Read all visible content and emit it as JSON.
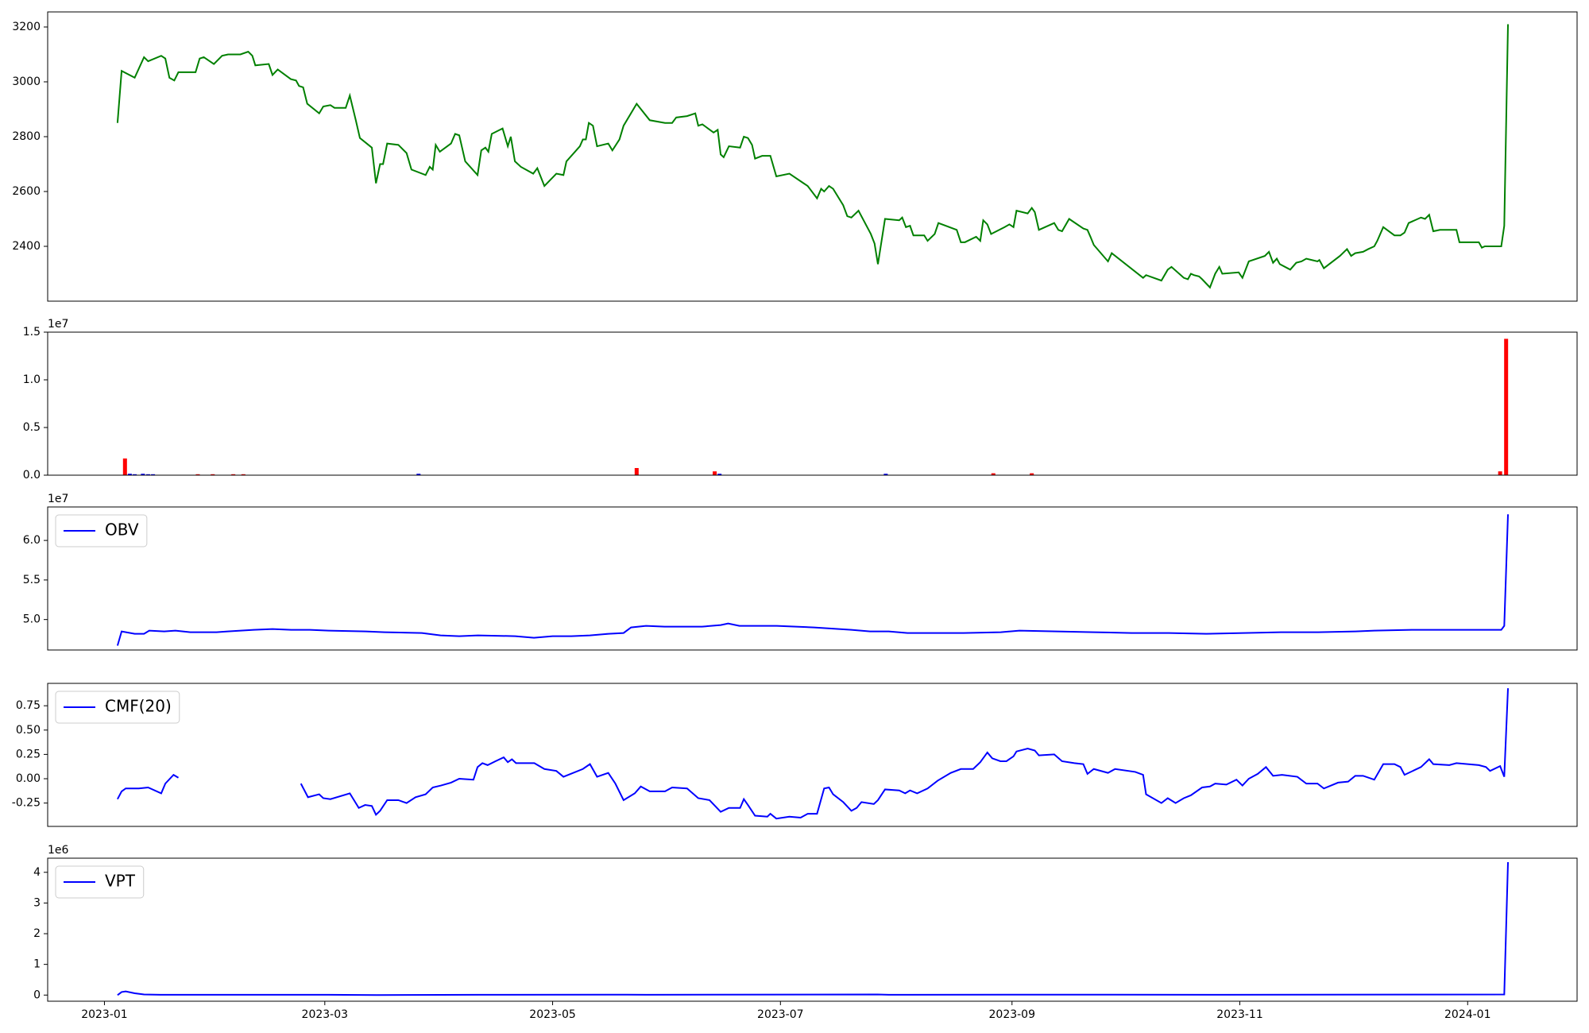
{
  "chart_data": [
    {
      "type": "line",
      "color": "#008000",
      "x": [
        3.5,
        4.6,
        8.1,
        10.6,
        11.7,
        15.2,
        16.3,
        17.4,
        18.7,
        19.8,
        24.4,
        25.5,
        26.6,
        29.3,
        31.5,
        33.1,
        36.4,
        38.5,
        39.6,
        40.4,
        44,
        45,
        46.4,
        49.9,
        51.3,
        52.1,
        53.2,
        54.3,
        57.5,
        58.6,
        60.5,
        61.6,
        64.6,
        65.7,
        67.3,
        68.4,
        71.6,
        72.7,
        73.8,
        74.6,
        75.7,
        78.7,
        80.9,
        82.2,
        86,
        87.1,
        87.9,
        88.7,
        89.8,
        92.8,
        93.9,
        95,
        96.6,
        99.9,
        100.9,
        102,
        102.8,
        103.7,
        106.6,
        108,
        108.8,
        109.9,
        111.5,
        114.8,
        115.9,
        117.8,
        121,
        122.9,
        123.7,
        127.3,
        128.1,
        128.9,
        129.7,
        130.8,
        131.9,
        134.9,
        136,
        137.9,
        139,
        142.5,
        146,
        150.1,
        152,
        153.1,
        156,
        158.2,
        159,
        160.1,
        163.1,
        164.2,
        165,
        165.8,
        167.2,
        170.2,
        171.2,
        172.3,
        173.4,
        174.2,
        176.1,
        178.3,
        179.9,
        183.4,
        187.2,
        188.3,
        190.8,
        191.9,
        192.7,
        194,
        195.1,
        197.8,
        198.9,
        200,
        201.9,
        205.2,
        206.2,
        207.1,
        209,
        212.8,
        213.6,
        214.6,
        215.7,
        216.6,
        218.7,
        219.5,
        220.4,
        222.3,
        223.3,
        228.2,
        229.3,
        230.4,
        233.4,
        234.5,
        235.3,
        236.4,
        237.4,
        241,
        242.3,
        243.4,
        244.2,
        247.2,
        248.3,
        249.1,
        250.2,
        254.3,
        255.4,
        256.4,
        258.3,
        262.1,
        263.2,
        264,
        264.9,
        268.7,
        269.7,
        278.1,
        278.9,
        283,
        284.7,
        285.7,
        289,
        290.1,
        290.9,
        291.7,
        293.1,
        293.9,
        296,
        297.4,
        298.5,
        299.3,
        303.7,
        304.7,
        306.4,
        310.7,
        311.8,
        312.9,
        313.9,
        314.7,
        317.5,
        319.1,
        320.5,
        321.8,
        324.8,
        325.3,
        326.5,
        330.8,
        332.7,
        333.8,
        334.9,
        337,
        338.4,
        340,
        340.8,
        342.4,
        345.4,
        347,
        348.1,
        349.2,
        352.5,
        353.6,
        354.7,
        355.8,
        357.6,
        362,
        362.8,
        368,
        368.8,
        369.6,
        374,
        374.8,
        375.8
      ],
      "values": [
        2850,
        3040,
        3015,
        3090,
        3075,
        3095,
        3085,
        3015,
        3005,
        3035,
        3035,
        3085,
        3090,
        3065,
        3095,
        3100,
        3100,
        3110,
        3095,
        3060,
        3065,
        3025,
        3045,
        3010,
        3005,
        2985,
        2980,
        2920,
        2885,
        2910,
        2915,
        2905,
        2905,
        2950,
        2860,
        2795,
        2760,
        2630,
        2700,
        2700,
        2775,
        2770,
        2740,
        2680,
        2660,
        2690,
        2680,
        2770,
        2745,
        2775,
        2810,
        2805,
        2710,
        2660,
        2750,
        2760,
        2745,
        2810,
        2830,
        2765,
        2800,
        2710,
        2690,
        2665,
        2685,
        2620,
        2665,
        2660,
        2710,
        2765,
        2790,
        2790,
        2850,
        2840,
        2765,
        2775,
        2750,
        2790,
        2840,
        2920,
        2860,
        2850,
        2850,
        2870,
        2875,
        2885,
        2840,
        2845,
        2815,
        2825,
        2735,
        2725,
        2765,
        2760,
        2800,
        2795,
        2770,
        2720,
        2730,
        2730,
        2655,
        2665,
        2630,
        2620,
        2575,
        2610,
        2600,
        2620,
        2610,
        2550,
        2510,
        2505,
        2530,
        2445,
        2410,
        2335,
        2500,
        2495,
        2505,
        2470,
        2475,
        2440,
        2440,
        2440,
        2420,
        2445,
        2485,
        2460,
        2415,
        2415,
        2435,
        2420,
        2495,
        2480,
        2445,
        2470,
        2480,
        2470,
        2530,
        2520,
        2540,
        2525,
        2460,
        2485,
        2460,
        2455,
        2500,
        2465,
        2460,
        2435,
        2405,
        2345,
        2375,
        2285,
        2295,
        2275,
        2315,
        2325,
        2285,
        2280,
        2300,
        2295,
        2290,
        2280,
        2250,
        2300,
        2325,
        2300,
        2305,
        2285,
        2345,
        2365,
        2380,
        2340,
        2355,
        2335,
        2315,
        2340,
        2345,
        2355,
        2345,
        2350,
        2320,
        2365,
        2390,
        2365,
        2375,
        2380,
        2390,
        2400,
        2420,
        2470,
        2440,
        2440,
        2450,
        2485,
        2505,
        2500,
        2515,
        2455,
        2460,
        2460,
        2415,
        2415,
        2395,
        2400,
        2400,
        2475,
        3210
      ],
      "xlim": [
        -15.2,
        394.3
      ],
      "ylim": [
        2200,
        3255
      ],
      "yticks": [
        2400,
        2600,
        2800,
        3000,
        3200
      ]
    },
    {
      "type": "bar",
      "offset_label": "1e7",
      "series": [
        {
          "color": "#ff0000",
          "x": [
            5.5,
            25,
            29,
            34.5,
            37.2,
            142.5,
            163.4,
            238,
            248.3,
            373.7,
            375.3
          ],
          "values": [
            1750000,
            100000,
            100000,
            100000,
            100000,
            750000,
            400000,
            200000,
            200000,
            400000,
            14300000
          ]
        },
        {
          "color": "#0000ff",
          "x": [
            6.8,
            8.1,
            10.3,
            11.7,
            13,
            84.1,
            164.7,
            209.2
          ],
          "values": [
            150000,
            100000,
            150000,
            100000,
            100000,
            150000,
            150000,
            150000
          ]
        }
      ],
      "xlim": [
        -15.2,
        394.3
      ],
      "ylim": [
        0,
        15000000
      ],
      "yticks": [
        {
          "value": 0,
          "label": "0.0"
        },
        {
          "value": 5000000,
          "label": "0.5"
        },
        {
          "value": 10000000,
          "label": "1.0"
        },
        {
          "value": 15000000,
          "label": "1.5"
        }
      ]
    },
    {
      "type": "line",
      "offset_label": "1e7",
      "legend": "upper left",
      "x": [
        3.5,
        4.6,
        8.1,
        10.6,
        12,
        16,
        19,
        23,
        30,
        33,
        40,
        45,
        50,
        55,
        60,
        70,
        75,
        85,
        90,
        95,
        100,
        110,
        115,
        120,
        125,
        130,
        135,
        139,
        141,
        145,
        150,
        160,
        165,
        167,
        170,
        180,
        190,
        200,
        205,
        210,
        215,
        220,
        230,
        240,
        245,
        255,
        265,
        275,
        285,
        295,
        305,
        315,
        325,
        335,
        340,
        350,
        360,
        370,
        374,
        374.8,
        375.8
      ],
      "series": [
        {
          "name": "OBV",
          "color": "#0000ff",
          "values": [
            46700000,
            48500000,
            48200000,
            48200000,
            48600000,
            48500000,
            48600000,
            48400000,
            48400000,
            48500000,
            48700000,
            48800000,
            48700000,
            48700000,
            48600000,
            48500000,
            48400000,
            48300000,
            48000000,
            47900000,
            48000000,
            47900000,
            47700000,
            47900000,
            47900000,
            48000000,
            48200000,
            48300000,
            49000000,
            49200000,
            49100000,
            49100000,
            49300000,
            49500000,
            49200000,
            49200000,
            49000000,
            48700000,
            48500000,
            48500000,
            48300000,
            48300000,
            48300000,
            48400000,
            48600000,
            48500000,
            48400000,
            48300000,
            48300000,
            48200000,
            48300000,
            48400000,
            48400000,
            48500000,
            48600000,
            48700000,
            48700000,
            48700000,
            48700000,
            49200000,
            63300000
          ]
        }
      ],
      "xlim": [
        -15.2,
        394.3
      ],
      "ylim": [
        46150000,
        64230000
      ],
      "yticks": [
        {
          "value": 50000000,
          "label": "5.0"
        },
        {
          "value": 55000000,
          "label": "5.5"
        },
        {
          "value": 60000000,
          "label": "6.0"
        }
      ]
    },
    {
      "type": "line",
      "legend": "upper left",
      "x": [
        3.5,
        4.6,
        5.7,
        9.2,
        11.7,
        15.2,
        16.3,
        18.5,
        19.8,
        36,
        52.6,
        54.5,
        57.5,
        58.6,
        60.5,
        65.7,
        68.1,
        69.8,
        71.6,
        72.7,
        73.8,
        75.7,
        78.7,
        80.9,
        83.3,
        86,
        87.9,
        90.1,
        92.8,
        95,
        98.8,
        99.9,
        101.2,
        102.6,
        104.7,
        106.9,
        108,
        109.1,
        110.2,
        115.1,
        117.8,
        121,
        122.9,
        128.1,
        130,
        131.9,
        134.9,
        136.8,
        139,
        142,
        143.6,
        146,
        150.1,
        152,
        156,
        159,
        162,
        165,
        167.2,
        170.2,
        171.2,
        172.3,
        174.2,
        177.5,
        178.3,
        179.9,
        183.4,
        186.4,
        188.3,
        190.8,
        192.7,
        194,
        195.1,
        197.8,
        200,
        201.4,
        202.7,
        206,
        207.1,
        209,
        212.8,
        214.4,
        215.7,
        217.6,
        220.4,
        223.1,
        226.6,
        229.3,
        232.6,
        234.5,
        236.4,
        237.7,
        239.9,
        241.5,
        243.4,
        244.2,
        247.2,
        249.1,
        250.2,
        254.3,
        256.4,
        259.7,
        262.1,
        263.2,
        264.9,
        268.7,
        270.6,
        276,
        278.1,
        278.9,
        283,
        284.7,
        286.8,
        289,
        290.9,
        293.9,
        296,
        297.4,
        300.4,
        303.1,
        304.7,
        306.4,
        308.8,
        311,
        312.9,
        315.3,
        319.4,
        321.8,
        324.8,
        326.5,
        330.3,
        333,
        334.9,
        337,
        340,
        342.4,
        345.4,
        347,
        348.1,
        352.5,
        354.7,
        355.8,
        360.1,
        362,
        368,
        369.9,
        371,
        373.7,
        374.8,
        375.8
      ],
      "series": [
        {
          "name": "CMF(20)",
          "color": "#0000ff",
          "values": [
            -0.21,
            -0.13,
            -0.1,
            -0.1,
            -0.09,
            -0.15,
            -0.05,
            0.04,
            0.01,
            null,
            -0.05,
            -0.19,
            -0.16,
            -0.2,
            -0.21,
            -0.15,
            -0.3,
            -0.27,
            -0.28,
            -0.37,
            -0.33,
            -0.22,
            -0.22,
            -0.25,
            -0.19,
            -0.16,
            -0.09,
            -0.07,
            -0.04,
            0,
            -0.01,
            0.12,
            0.16,
            0.14,
            0.18,
            0.22,
            0.17,
            0.2,
            0.16,
            0.16,
            0.1,
            0.08,
            0.02,
            0.1,
            0.15,
            0.02,
            0.06,
            -0.05,
            -0.22,
            -0.15,
            -0.08,
            -0.13,
            -0.13,
            -0.09,
            -0.1,
            -0.2,
            -0.22,
            -0.34,
            -0.3,
            -0.3,
            -0.21,
            -0.27,
            -0.38,
            -0.39,
            -0.36,
            -0.41,
            -0.39,
            -0.4,
            -0.36,
            -0.36,
            -0.1,
            -0.09,
            -0.16,
            -0.24,
            -0.33,
            -0.3,
            -0.24,
            -0.26,
            -0.22,
            -0.11,
            -0.12,
            -0.15,
            -0.12,
            -0.15,
            -0.1,
            -0.02,
            0.06,
            0.1,
            0.1,
            0.17,
            0.27,
            0.21,
            0.18,
            0.18,
            0.23,
            0.28,
            0.31,
            0.29,
            0.24,
            0.25,
            0.18,
            0.16,
            0.15,
            0.05,
            0.1,
            0.06,
            0.1,
            0.07,
            0.04,
            -0.16,
            -0.25,
            -0.2,
            -0.25,
            -0.2,
            -0.17,
            -0.09,
            -0.08,
            -0.05,
            -0.06,
            -0.01,
            -0.07,
            0,
            0.05,
            0.12,
            0.03,
            0.04,
            0.02,
            -0.05,
            -0.05,
            -0.1,
            -0.04,
            -0.03,
            0.03,
            0.03,
            -0.01,
            0.15,
            0.15,
            0.12,
            0.04,
            0.12,
            0.2,
            0.15,
            0.14,
            0.16,
            0.14,
            0.12,
            0.08,
            0.13,
            0.02,
            0.93
          ]
        }
      ],
      "xlim": [
        -15.2,
        394.3
      ],
      "ylim": [
        -0.49,
        0.98
      ],
      "yticks": [
        {
          "value": -0.25,
          "label": "-0.25"
        },
        {
          "value": 0,
          "label": "0.00"
        },
        {
          "value": 0.25,
          "label": "0.25"
        },
        {
          "value": 0.5,
          "label": "0.50"
        },
        {
          "value": 0.75,
          "label": "0.75"
        }
      ]
    },
    {
      "type": "line",
      "offset_label": "1e6",
      "legend": "upper left",
      "x": [
        3.5,
        4.6,
        5.7,
        8.1,
        10.6,
        15,
        60,
        73,
        100,
        140,
        145,
        207,
        210,
        250,
        300,
        374.8,
        375.8
      ],
      "series": [
        {
          "name": "VPT",
          "color": "#0000ff",
          "values": [
            0,
            100000,
            120000,
            60000,
            20000,
            10000,
            10000,
            0,
            10000,
            15000,
            10000,
            20000,
            10000,
            15000,
            10000,
            20000,
            4330000
          ]
        }
      ],
      "xlim": [
        -15.2,
        394.3
      ],
      "ylim": [
        -200000,
        4460000
      ],
      "yticks": [
        0,
        {
          "value": 1000000,
          "label": "1"
        },
        {
          "value": 2000000,
          "label": "2"
        },
        {
          "value": 3000000,
          "label": "3"
        },
        {
          "value": 4000000,
          "label": "4"
        }
      ],
      "xticks": [
        {
          "value": 0,
          "label": "2023-01"
        },
        {
          "value": 59,
          "label": "2023-03"
        },
        {
          "value": 120,
          "label": "2023-05"
        },
        {
          "value": 181,
          "label": "2023-07"
        },
        {
          "value": 243,
          "label": "2023-09"
        },
        {
          "value": 304,
          "label": "2023-11"
        },
        {
          "value": 365,
          "label": "2024-01"
        }
      ]
    }
  ]
}
